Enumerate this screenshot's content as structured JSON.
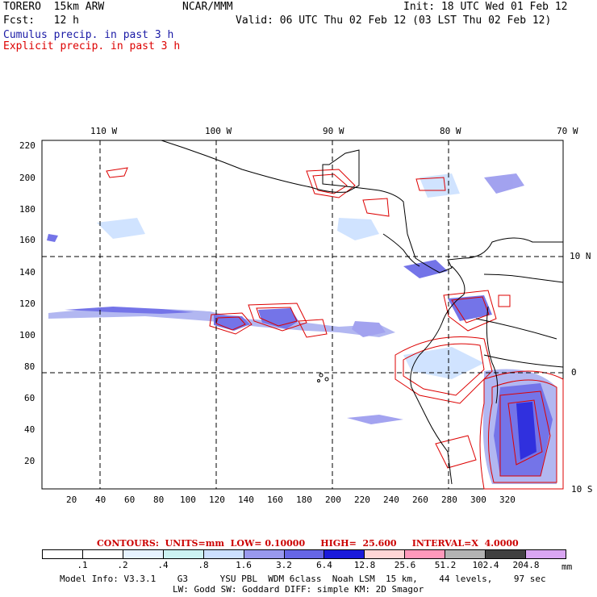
{
  "header": {
    "model": "TORERO  15km ARW",
    "org": "NCAR/MMM",
    "init": "Init: 18 UTC Wed 01 Feb 12",
    "fcst": "Fcst:   12 h",
    "valid": "Valid: 06 UTC Thu 02 Feb 12 (03 LST Thu 02 Feb 12)",
    "field1": "Cumulus precip. in past 3 h",
    "field2": "Explicit precip. in past 3 h",
    "field1_color": "#1a1aa6",
    "field2_color": "#dd0000"
  },
  "map": {
    "lon_labels": [
      "110 W",
      "100 W",
      "90 W",
      "80 W",
      "70 W"
    ],
    "lat_labels": [
      "10 N",
      "0",
      "10 S"
    ],
    "y_ticks": [
      "220",
      "200",
      "180",
      "160",
      "140",
      "120",
      "100",
      "80",
      "60",
      "40",
      "20"
    ],
    "x_ticks": [
      "20",
      "40",
      "60",
      "80",
      "100",
      "120",
      "140",
      "160",
      "180",
      "200",
      "220",
      "240",
      "260",
      "280",
      "300",
      "320"
    ]
  },
  "contours": {
    "text": "CONTOURS:  UNITS=mm  LOW= 0.10000     HIGH=  25.600     INTERVAL=X  4.0000"
  },
  "scale": {
    "labels": [
      ".1",
      ".2",
      ".4",
      ".8",
      "1.6",
      "3.2",
      "6.4",
      "12.8",
      "25.6",
      "51.2",
      "102.4",
      "204.8"
    ],
    "unit": "mm",
    "colors": [
      "#ffffff",
      "#ffffff",
      "#e6f2ff",
      "#ccf2f2",
      "#cce0ff",
      "#9999ee",
      "#6666e6",
      "#1a1adb",
      "#ffd6d6",
      "#ff99bb",
      "#b3b3b3",
      "#404040",
      "#d9a6f2"
    ]
  },
  "footer": {
    "line1": "Model Info: V3.3.1    G3      YSU PBL  WDM 6class  Noah LSM  15 km,    44 levels,    97 sec",
    "line2": "LW: Godd SW: Goddard DIFF: simple KM: 2D Smagor"
  }
}
